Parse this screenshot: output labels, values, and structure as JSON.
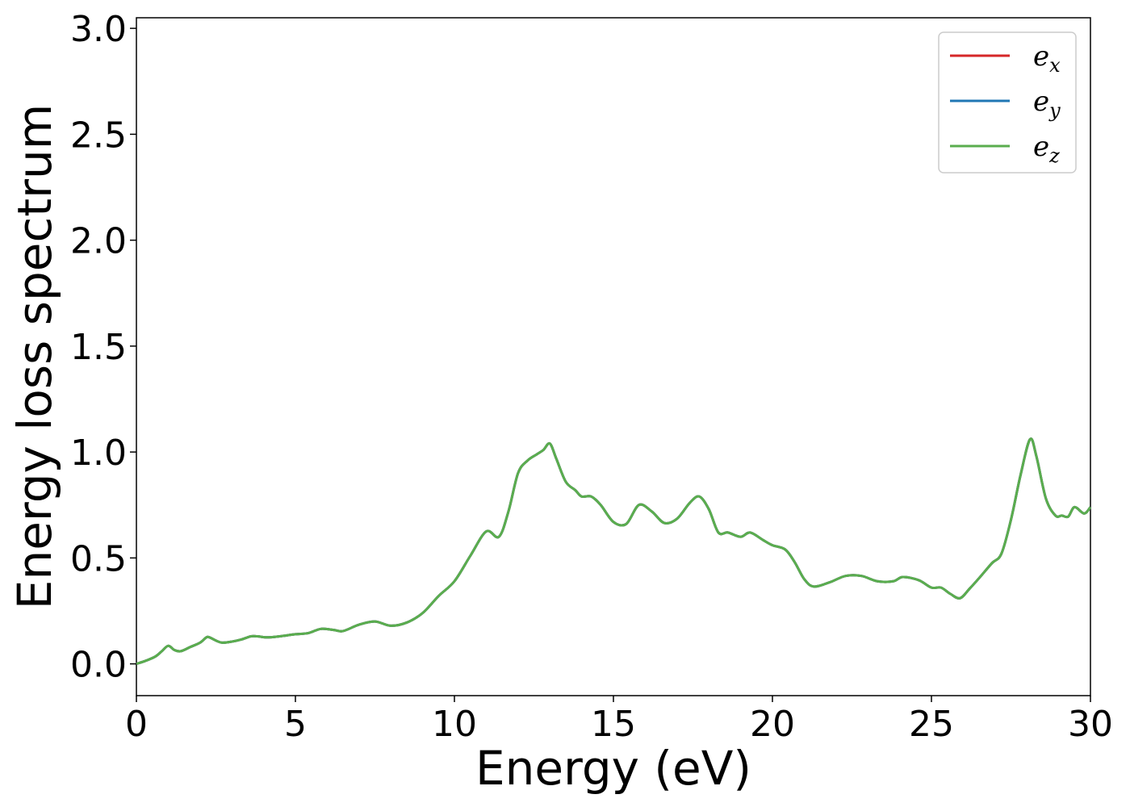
{
  "chart_data": {
    "type": "line",
    "title": "",
    "xlabel": "Energy (eV)",
    "ylabel": "Energy loss spectrum",
    "xlim": [
      0,
      30
    ],
    "ylim": [
      -0.15,
      3.05
    ],
    "xticks": [
      "0",
      "5",
      "10",
      "15",
      "20",
      "25",
      "30"
    ],
    "yticks": [
      "0.0",
      "0.5",
      "1.0",
      "1.5",
      "2.0",
      "2.5",
      "3.0"
    ],
    "grid": false,
    "legend": "top-right",
    "x": [
      0,
      0.3,
      0.6,
      0.8,
      1.0,
      1.2,
      1.4,
      1.7,
      2.0,
      2.2,
      2.3,
      2.5,
      2.7,
      3.0,
      3.3,
      3.6,
      3.8,
      4.1,
      4.5,
      5.0,
      5.4,
      5.8,
      6.2,
      6.5,
      7.0,
      7.5,
      8.0,
      8.5,
      9.0,
      9.5,
      10.0,
      10.5,
      11.0,
      11.4,
      11.7,
      12.0,
      12.3,
      12.6,
      12.8,
      13.0,
      13.2,
      13.5,
      13.8,
      14.0,
      14.3,
      14.6,
      15.0,
      15.4,
      15.8,
      16.2,
      16.6,
      17.0,
      17.4,
      17.7,
      18.0,
      18.3,
      18.6,
      19.0,
      19.3,
      19.7,
      20.0,
      20.4,
      20.7,
      21.0,
      21.3,
      21.8,
      22.3,
      22.8,
      23.3,
      23.8,
      24.1,
      24.6,
      25.0,
      25.3,
      25.6,
      25.9,
      26.2,
      26.5,
      26.9,
      27.2,
      27.5,
      27.8,
      28.1,
      28.3,
      28.6,
      28.9,
      29.1,
      29.3,
      29.5,
      29.8,
      30.0
    ],
    "series": [
      {
        "name": "e_x",
        "color": "#d62728",
        "values": [
          0.0,
          0.015,
          0.035,
          0.06,
          0.085,
          0.065,
          0.06,
          0.08,
          0.1,
          0.125,
          0.125,
          0.11,
          0.1,
          0.105,
          0.115,
          0.13,
          0.13,
          0.125,
          0.13,
          0.14,
          0.145,
          0.165,
          0.16,
          0.155,
          0.185,
          0.2,
          0.18,
          0.195,
          0.24,
          0.32,
          0.39,
          0.51,
          0.625,
          0.6,
          0.72,
          0.9,
          0.96,
          0.99,
          1.01,
          1.04,
          0.97,
          0.86,
          0.82,
          0.79,
          0.79,
          0.75,
          0.67,
          0.66,
          0.75,
          0.72,
          0.665,
          0.685,
          0.76,
          0.79,
          0.73,
          0.62,
          0.62,
          0.6,
          0.62,
          0.585,
          0.56,
          0.54,
          0.48,
          0.4,
          0.365,
          0.385,
          0.415,
          0.415,
          0.39,
          0.39,
          0.41,
          0.395,
          0.36,
          0.36,
          0.33,
          0.31,
          0.355,
          0.405,
          0.475,
          0.52,
          0.68,
          0.89,
          1.06,
          0.98,
          0.78,
          0.7,
          0.7,
          0.695,
          0.74,
          0.71,
          0.74
        ]
      },
      {
        "name": "e_y",
        "color": "#1f77b4",
        "values": [
          0.0,
          0.015,
          0.035,
          0.06,
          0.085,
          0.065,
          0.06,
          0.08,
          0.1,
          0.125,
          0.125,
          0.11,
          0.1,
          0.105,
          0.115,
          0.13,
          0.13,
          0.125,
          0.13,
          0.14,
          0.145,
          0.165,
          0.16,
          0.155,
          0.185,
          0.2,
          0.18,
          0.195,
          0.24,
          0.32,
          0.39,
          0.51,
          0.625,
          0.6,
          0.72,
          0.9,
          0.96,
          0.99,
          1.01,
          1.04,
          0.97,
          0.86,
          0.82,
          0.79,
          0.79,
          0.75,
          0.67,
          0.66,
          0.75,
          0.72,
          0.665,
          0.685,
          0.76,
          0.79,
          0.73,
          0.62,
          0.62,
          0.6,
          0.62,
          0.585,
          0.56,
          0.54,
          0.48,
          0.4,
          0.365,
          0.385,
          0.415,
          0.415,
          0.39,
          0.39,
          0.41,
          0.395,
          0.36,
          0.36,
          0.33,
          0.31,
          0.355,
          0.405,
          0.475,
          0.52,
          0.68,
          0.89,
          1.06,
          0.98,
          0.78,
          0.7,
          0.7,
          0.695,
          0.74,
          0.71,
          0.74
        ]
      },
      {
        "name": "e_z",
        "color": "#5aad4e",
        "values": [
          0.0,
          0.015,
          0.035,
          0.06,
          0.085,
          0.065,
          0.06,
          0.08,
          0.1,
          0.125,
          0.125,
          0.11,
          0.1,
          0.105,
          0.115,
          0.13,
          0.13,
          0.125,
          0.13,
          0.14,
          0.145,
          0.165,
          0.16,
          0.155,
          0.185,
          0.2,
          0.18,
          0.195,
          0.24,
          0.32,
          0.39,
          0.51,
          0.625,
          0.6,
          0.72,
          0.9,
          0.96,
          0.99,
          1.01,
          1.04,
          0.97,
          0.86,
          0.82,
          0.79,
          0.79,
          0.75,
          0.67,
          0.66,
          0.75,
          0.72,
          0.665,
          0.685,
          0.76,
          0.79,
          0.73,
          0.62,
          0.62,
          0.6,
          0.62,
          0.585,
          0.56,
          0.54,
          0.48,
          0.4,
          0.365,
          0.385,
          0.415,
          0.415,
          0.39,
          0.39,
          0.41,
          0.395,
          0.36,
          0.36,
          0.33,
          0.31,
          0.355,
          0.405,
          0.475,
          0.52,
          0.68,
          0.89,
          1.06,
          0.98,
          0.78,
          0.7,
          0.7,
          0.695,
          0.74,
          0.71,
          0.74
        ]
      }
    ],
    "legend_entries": [
      {
        "base": "e",
        "sub": "x",
        "color": "#d62728"
      },
      {
        "base": "e",
        "sub": "y",
        "color": "#1f77b4"
      },
      {
        "base": "e",
        "sub": "z",
        "color": "#5aad4e"
      }
    ]
  }
}
